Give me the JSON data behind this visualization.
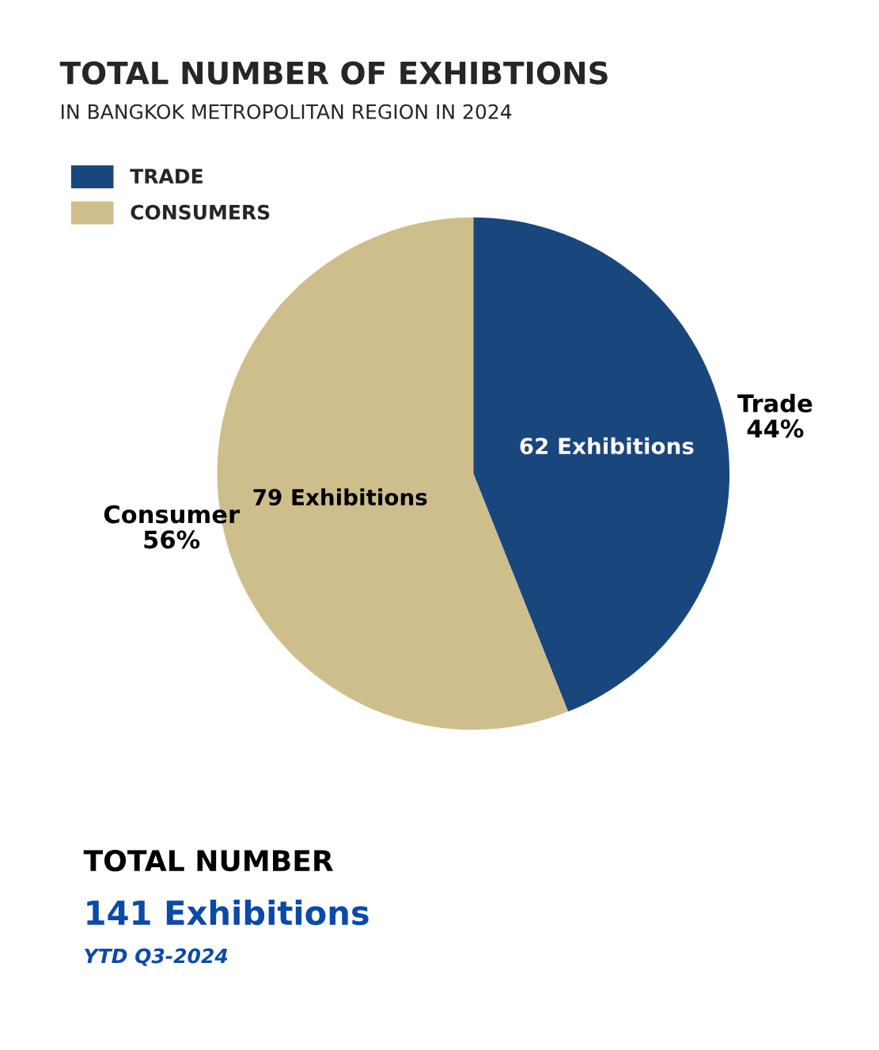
{
  "chart_data": {
    "type": "pie",
    "title": "TOTAL NUMBER OF EXHIBTIONS",
    "subtitle": "IN BANGKOK METROPOLITAN REGION IN 2024",
    "categories": [
      "TRADE",
      "CONSUMERS"
    ],
    "values": [
      62,
      79
    ],
    "colors": [
      "#1a467e",
      "#cebe8b"
    ],
    "value_labels": [
      "62 Exhibitions",
      "79 Exhibitions"
    ],
    "legend": "top left",
    "annotations": [
      "Trade\n44%",
      "Consumer\n56%",
      "TOTAL NUMBER",
      "141 Exhibitions",
      "YTD Q3-2024"
    ]
  }
}
